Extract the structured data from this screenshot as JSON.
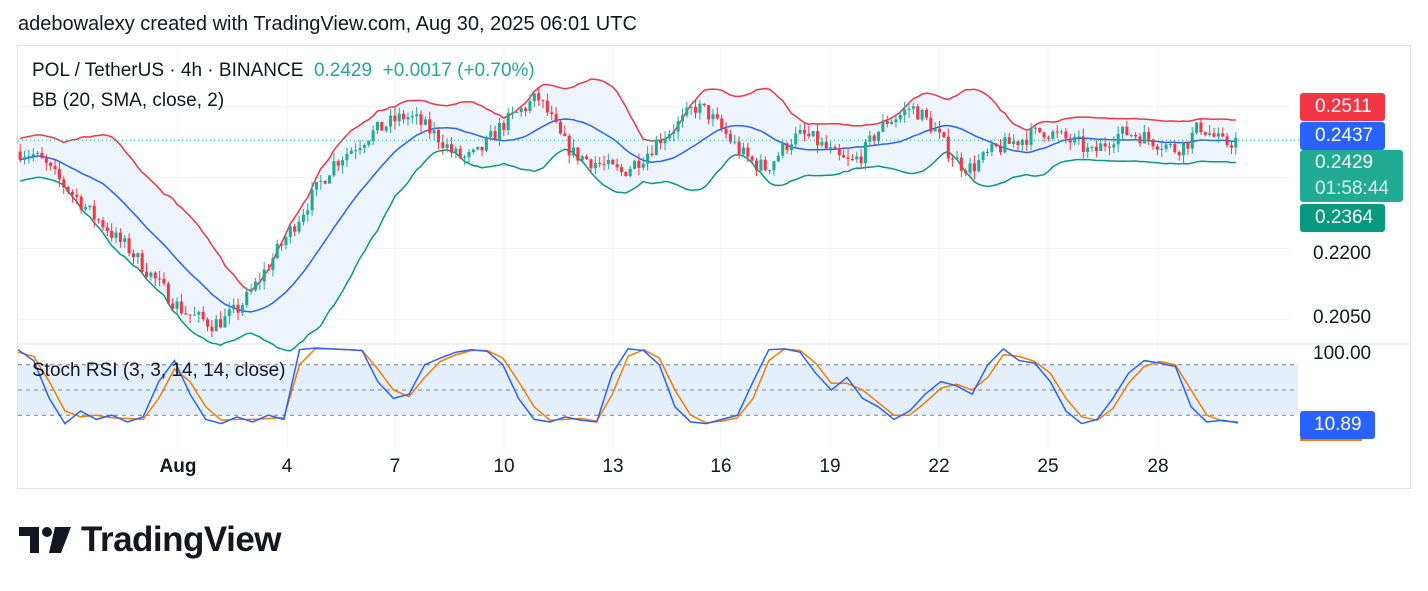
{
  "header": {
    "text": "adebowalexy created with TradingView.com, Aug 30, 2025 06:01 UTC"
  },
  "legend": {
    "symbol": "POL / TetherUS · 4h · BINANCE",
    "last": "0.2429",
    "change": "+0.0017 (+0.70%)",
    "bb": "BB (20, SMA, close, 2)",
    "stoch": "Stoch RSI (3, 3, 14, 14, close)"
  },
  "labels": {
    "bb_upper": "0.2511",
    "bb_basis": "0.2437",
    "last_price": "0.2429",
    "countdown": "01:58:44",
    "bb_lower": "0.2364",
    "stoch_value": "10.89"
  },
  "price_axis": [
    "0.2200",
    "0.2050"
  ],
  "stoch_axis": [
    "100.00"
  ],
  "x_axis": [
    "Aug",
    "4",
    "7",
    "10",
    "13",
    "16",
    "19",
    "22",
    "25",
    "28"
  ],
  "brand": {
    "name": "TradingView"
  },
  "colors": {
    "up": "#22ab94",
    "down": "#f23645",
    "bb_upper": "#f23645",
    "bb_basis": "#2962ff",
    "bb_lower": "#089981",
    "bb_fill": "#eef4fb",
    "k": "#2962ff",
    "d": "#f57c00",
    "stoch_band": "#e3f0fb"
  },
  "chart_data": [
    {
      "type": "candlestick",
      "title": "POL / TetherUS · 4h · BINANCE",
      "x": [
        "Aug",
        "4",
        "7",
        "10",
        "13",
        "16",
        "19",
        "22",
        "25",
        "28"
      ],
      "ylabel": "",
      "ylim": [
        0.2,
        0.262
      ],
      "approx_close_path": [
        0.2405,
        0.24,
        0.238,
        0.235,
        0.2325,
        0.23,
        0.227,
        0.225,
        0.222,
        0.22,
        0.217,
        0.214,
        0.211,
        0.208,
        0.206,
        0.205,
        0.204,
        0.205,
        0.207,
        0.21,
        0.214,
        0.218,
        0.222,
        0.226,
        0.23,
        0.234,
        0.238,
        0.24,
        0.242,
        0.244,
        0.2455,
        0.247,
        0.248,
        0.247,
        0.245,
        0.243,
        0.24,
        0.239,
        0.24,
        0.243,
        0.246,
        0.248,
        0.25,
        0.252,
        0.248,
        0.243,
        0.24,
        0.239,
        0.238,
        0.237,
        0.236,
        0.238,
        0.24,
        0.243,
        0.245,
        0.247,
        0.25,
        0.249,
        0.246,
        0.243,
        0.24,
        0.238,
        0.237,
        0.24,
        0.243,
        0.244,
        0.243,
        0.241,
        0.239,
        0.238,
        0.24,
        0.244,
        0.247,
        0.248,
        0.25,
        0.248,
        0.245,
        0.241,
        0.238,
        0.237,
        0.239,
        0.241,
        0.242,
        0.243,
        0.244,
        0.245,
        0.244,
        0.243,
        0.242,
        0.24,
        0.242,
        0.244,
        0.2445,
        0.244,
        0.243,
        0.242,
        0.241,
        0.2425,
        0.246,
        0.244,
        0.242,
        0.2429
      ]
    },
    {
      "type": "line",
      "title": "Bollinger Bands",
      "series": [
        {
          "name": "upper",
          "last": 0.2511
        },
        {
          "name": "basis",
          "last": 0.2437
        },
        {
          "name": "lower",
          "last": 0.2364
        }
      ]
    },
    {
      "type": "line",
      "title": "Stoch RSI (3, 3, 14, 14, close)",
      "ylim": [
        0,
        100
      ],
      "bands": [
        20,
        80
      ],
      "series": [
        {
          "name": "K",
          "values": [
            98,
            85,
            40,
            10,
            25,
            15,
            20,
            12,
            18,
            60,
            85,
            45,
            15,
            10,
            18,
            12,
            20,
            15,
            98,
            100,
            99,
            98,
            97,
            60,
            40,
            45,
            80,
            88,
            95,
            98,
            96,
            80,
            40,
            15,
            12,
            18,
            14,
            12,
            70,
            99,
            97,
            80,
            30,
            12,
            10,
            15,
            20,
            60,
            98,
            99,
            95,
            70,
            50,
            65,
            40,
            30,
            15,
            25,
            45,
            60,
            55,
            45,
            80,
            99,
            85,
            82,
            60,
            25,
            10,
            15,
            40,
            70,
            85,
            82,
            78,
            30,
            12,
            14,
            10.89
          ]
        },
        {
          "name": "D",
          "values": [
            95,
            90,
            60,
            25,
            18,
            20,
            17,
            16,
            15,
            40,
            75,
            60,
            30,
            14,
            15,
            15,
            16,
            17,
            80,
            99,
            99,
            98,
            97,
            75,
            50,
            42,
            65,
            84,
            92,
            97,
            97,
            88,
            60,
            30,
            14,
            15,
            16,
            13,
            45,
            90,
            98,
            88,
            50,
            20,
            11,
            13,
            17,
            40,
            85,
            99,
            97,
            82,
            58,
            58,
            50,
            35,
            20,
            20,
            35,
            52,
            57,
            50,
            65,
            92,
            90,
            84,
            70,
            40,
            18,
            14,
            28,
            58,
            78,
            84,
            80,
            50,
            20,
            13,
            12
          ]
        }
      ]
    }
  ]
}
